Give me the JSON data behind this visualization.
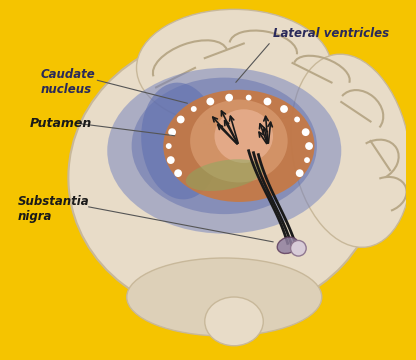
{
  "background_color": "#F5C400",
  "figsize": [
    4.16,
    3.6
  ],
  "dpi": 100,
  "labels": {
    "lateral_ventricles": "Lateral ventricles",
    "caudate_nucleus": "Caudate\nnucleus",
    "putamen": "Putamen",
    "substantia_nigra": "Substantia\nnigra"
  },
  "label_colors": {
    "lateral_ventricles": "#2a2a5a",
    "caudate_nucleus": "#2a2a5a",
    "putamen": "#1a1a1a",
    "substantia_nigra": "#1a1a1a"
  },
  "brain_outer_color": "#e8dcc8",
  "brain_shadow_color": "#c8b89a",
  "blue_region_color": "#7080c0",
  "brown_region_color": "#c87840",
  "inner_core_color": "#d4956a",
  "white_dots_color": "#ffffff",
  "nerve_color": "#1a1a1a",
  "substantia_nigra_color": "#9080a0"
}
